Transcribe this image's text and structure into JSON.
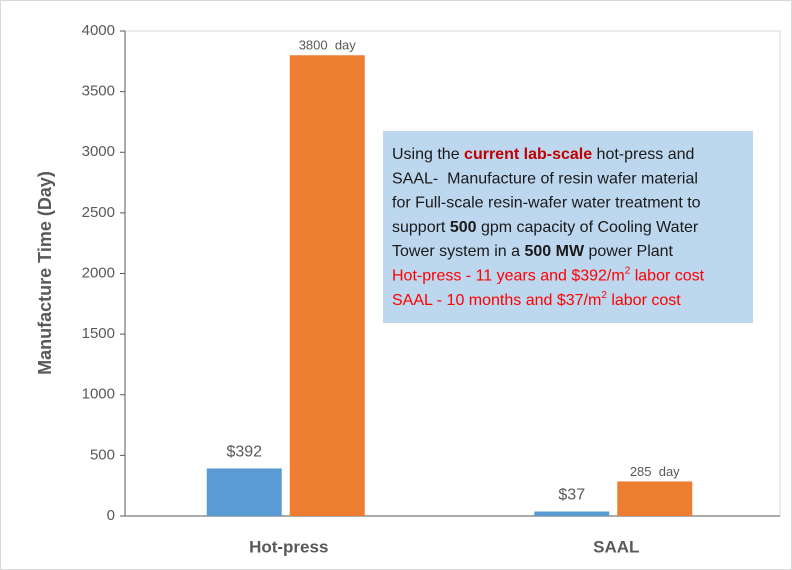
{
  "chart_data": {
    "type": "bar",
    "ylabel": "Manufacture Time (Day)",
    "categories": [
      "Hot-press",
      "SAAL"
    ],
    "series": [
      {
        "color": "#5b9bd5",
        "values": [
          392,
          37
        ],
        "value_labels": [
          "$392",
          "$37"
        ]
      },
      {
        "color": "#ed7d31",
        "values": [
          3800,
          285
        ],
        "value_labels": [
          "3800  day",
          "285  day"
        ]
      }
    ],
    "ylim": [
      0,
      4000
    ],
    "yticks": [
      0,
      500,
      1000,
      1500,
      2000,
      2500,
      3000,
      3500,
      4000
    ],
    "annotation": {
      "fill": "#bdd7ee",
      "lines": [
        [
          {
            "text": "Using the "
          },
          {
            "text": "current lab-scale",
            "bold": true,
            "color": "#c00000"
          },
          {
            "text": " hot-press and"
          }
        ],
        [
          {
            "text": "SAAL-  Manufacture of resin wafer material"
          }
        ],
        [
          {
            "text": "for Full-scale resin-wafer water treatment to"
          }
        ],
        [
          {
            "text": "support "
          },
          {
            "text": "500",
            "bold": true
          },
          {
            "text": " gpm capacity of Cooling Water"
          }
        ],
        [
          {
            "text": "Tower system in a "
          },
          {
            "text": "500 MW",
            "bold": true
          },
          {
            "text": " power Plant"
          }
        ],
        [
          {
            "text": "Hot-press - 11 years and $392/m",
            "color": "#ff0000"
          },
          {
            "text": "2",
            "sup": true,
            "color": "#ff0000"
          },
          {
            "text": " labor cost",
            "color": "#ff0000"
          }
        ],
        [
          {
            "text": "SAAL - 10 months and $37/m",
            "color": "#ff0000"
          },
          {
            "text": "2",
            "sup": true,
            "color": "#ff0000"
          },
          {
            "text": " labor cost",
            "color": "#ff0000"
          }
        ]
      ]
    }
  }
}
